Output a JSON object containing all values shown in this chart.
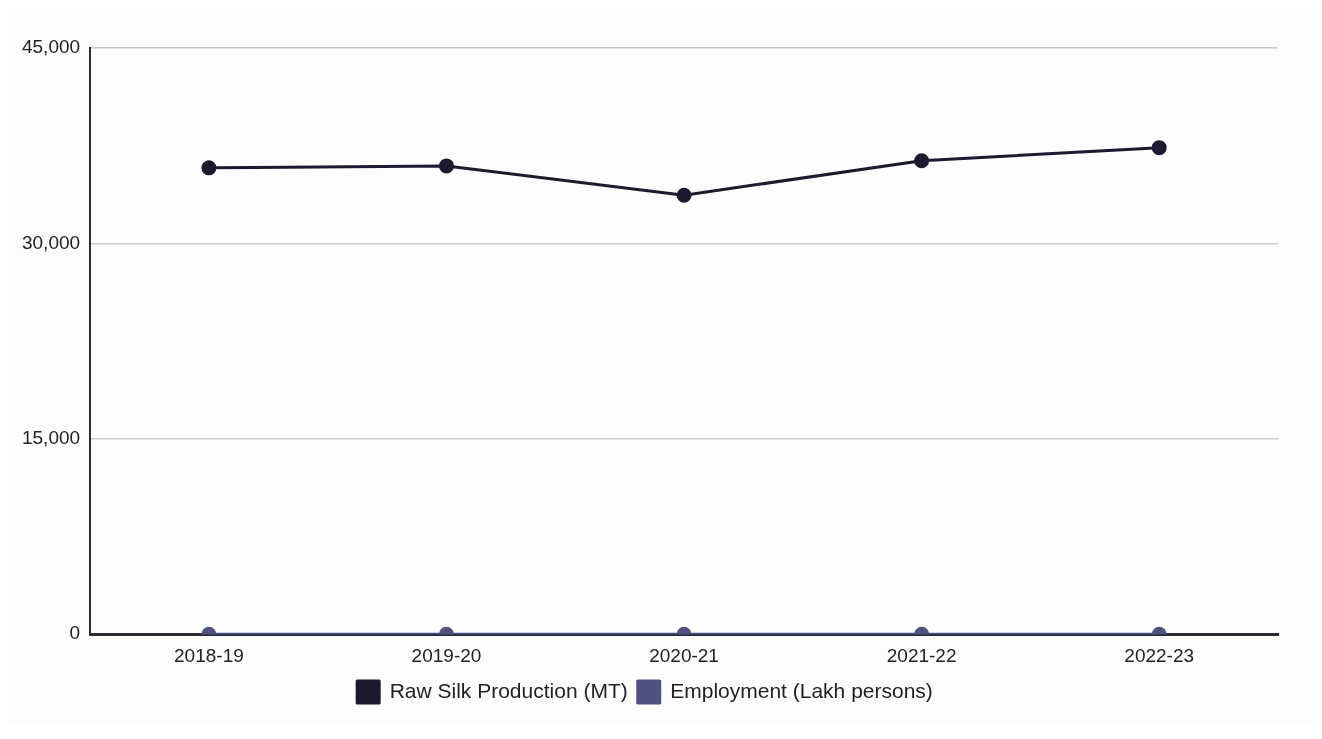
{
  "chart_data": {
    "type": "line",
    "categories": [
      "2018-19",
      "2019-20",
      "2020-21",
      "2021-22",
      "2022-23"
    ],
    "series": [
      {
        "name": "Raw Silk Production (MT)",
        "color": "#1c1a2e",
        "values": [
          35800,
          35950,
          33700,
          36350,
          37350
        ]
      },
      {
        "name": "Employment (Lakh persons)",
        "color": "#4f5280",
        "values": [
          0,
          0,
          0,
          0,
          0
        ]
      }
    ],
    "ylim": [
      0,
      45000
    ],
    "yticks": [
      {
        "value": 0,
        "label": "0"
      },
      {
        "value": 15000,
        "label": "15,000"
      },
      {
        "value": 30000,
        "label": "30,000"
      },
      {
        "value": 45000,
        "label": "45,000"
      }
    ],
    "grid": "y",
    "legend": "bottom",
    "marker": "circle",
    "line_style": "solid"
  }
}
